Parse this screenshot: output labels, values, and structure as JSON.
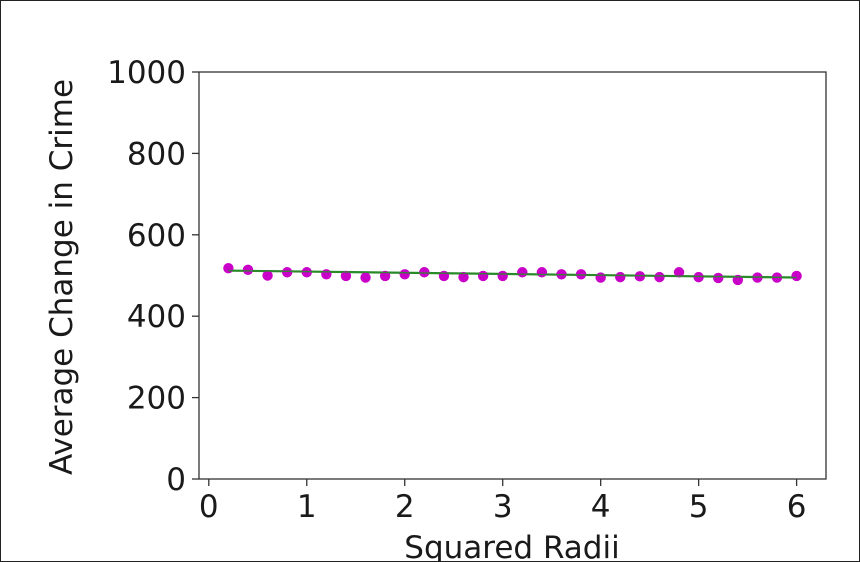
{
  "chart_data": {
    "type": "scatter",
    "xlabel": "Squared Radii",
    "ylabel": "Average Change in Crime",
    "xlim": [
      -0.1,
      6.3
    ],
    "ylim": [
      0,
      1000
    ],
    "xticks": [
      0,
      1,
      2,
      3,
      4,
      5,
      6
    ],
    "yticks": [
      0,
      200,
      400,
      600,
      800,
      1000
    ],
    "grid": false,
    "series": [
      {
        "kind": "scatter",
        "color": "#c800c8",
        "x": [
          0.2,
          0.4,
          0.6,
          0.8,
          1.0,
          1.2,
          1.4,
          1.6,
          1.8,
          2.0,
          2.2,
          2.4,
          2.6,
          2.8,
          3.0,
          3.2,
          3.4,
          3.6,
          3.8,
          4.0,
          4.2,
          4.4,
          4.6,
          4.8,
          5.0,
          5.2,
          5.4,
          5.6,
          5.8,
          6.0
        ],
        "y": [
          518,
          514,
          500,
          508,
          508,
          503,
          499,
          495,
          499,
          503,
          508,
          499,
          496,
          499,
          499,
          508,
          508,
          503,
          503,
          495,
          496,
          498,
          496,
          508,
          496,
          494,
          489,
          495,
          495,
          499
        ]
      },
      {
        "kind": "line",
        "color": "#2a8a2a",
        "x": [
          0.2,
          6.0
        ],
        "y": [
          512,
          495
        ]
      }
    ]
  }
}
